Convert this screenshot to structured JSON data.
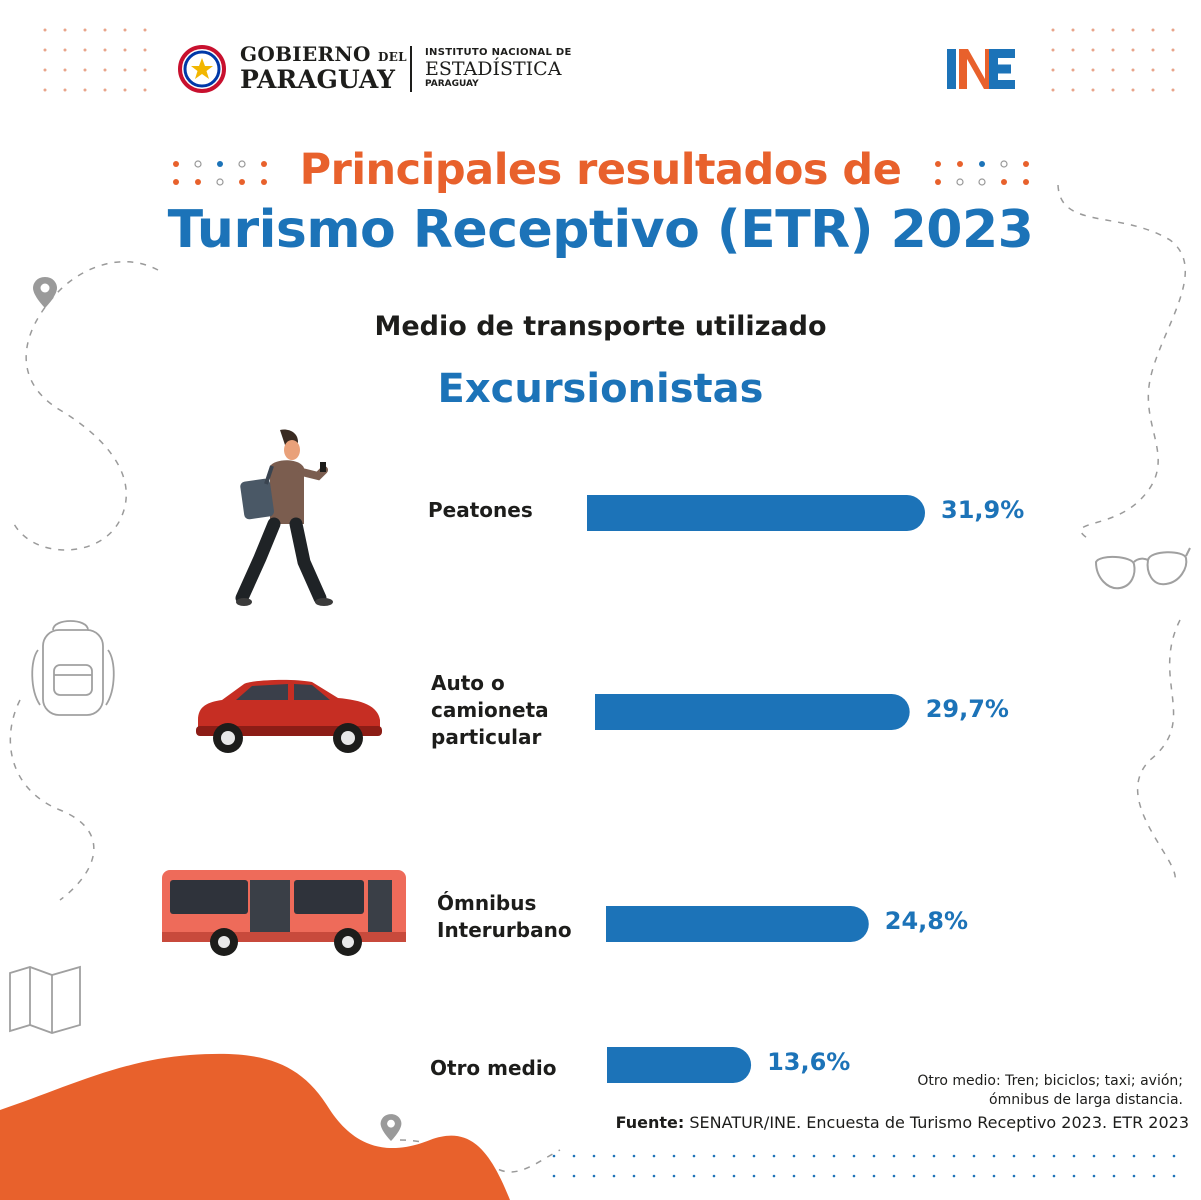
{
  "header": {
    "gov_line1": "GOBIERNO",
    "gov_line1_small": "DEL",
    "gov_line2": "PARAGUAY",
    "ine_line1": "INSTITUTO NACIONAL DE",
    "ine_line2": "ESTADÍSTICA",
    "ine_line3": "PARAGUAY"
  },
  "titles": {
    "line1": "Principales resultados de",
    "line2": "Turismo Receptivo (ETR) 2023",
    "subtitle": "Medio de transporte utilizado",
    "group": "Excursionistas"
  },
  "chart_data": {
    "type": "bar",
    "orientation": "horizontal",
    "categories": [
      "Peatones",
      "Auto o\ncamioneta\nparticular",
      "Ómnibus\nInterurbano",
      "Otro medio"
    ],
    "values": [
      31.9,
      29.7,
      24.8,
      13.6
    ],
    "value_labels": [
      "31,9%",
      "29,7%",
      "24,8%",
      "13,6%"
    ],
    "unit": "%",
    "title": "Medio de transporte utilizado",
    "xlabel": "",
    "ylabel": "",
    "color": "#1c73b8"
  },
  "footer": {
    "note_line1": "Otro medio: Tren; biciclos; taxi; avión;",
    "note_line2": "ómnibus de larga distancia.",
    "source_label": "Fuente:",
    "source_text": " SENATUR/INE. Encuesta de Turismo Receptivo 2023. ETR 2023"
  },
  "colors": {
    "orange": "#e8612c",
    "blue": "#1c73b8",
    "dark": "#1d1d1b"
  },
  "icons": [
    "paraguay-shield-icon",
    "ine-logo-icon",
    "location-pin-icon",
    "sunglasses-icon",
    "backpack-icon",
    "map-icon",
    "pedestrian-icon",
    "car-icon",
    "bus-icon"
  ]
}
